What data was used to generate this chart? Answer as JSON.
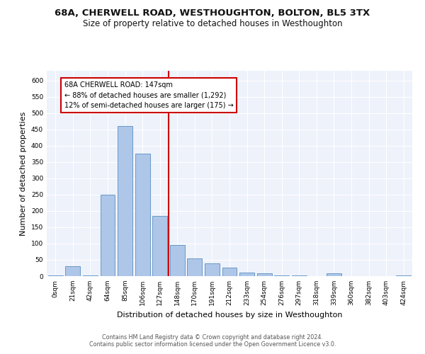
{
  "title": "68A, CHERWELL ROAD, WESTHOUGHTON, BOLTON, BL5 3TX",
  "subtitle": "Size of property relative to detached houses in Westhoughton",
  "xlabel": "Distribution of detached houses by size in Westhoughton",
  "ylabel": "Number of detached properties",
  "footer1": "Contains HM Land Registry data © Crown copyright and database right 2024.",
  "footer2": "Contains public sector information licensed under the Open Government Licence v3.0.",
  "bar_labels": [
    "0sqm",
    "21sqm",
    "42sqm",
    "64sqm",
    "85sqm",
    "106sqm",
    "127sqm",
    "148sqm",
    "170sqm",
    "191sqm",
    "212sqm",
    "233sqm",
    "254sqm",
    "276sqm",
    "297sqm",
    "318sqm",
    "339sqm",
    "360sqm",
    "382sqm",
    "403sqm",
    "424sqm"
  ],
  "bar_values": [
    2,
    30,
    2,
    250,
    460,
    375,
    185,
    95,
    55,
    40,
    25,
    10,
    8,
    2,
    2,
    0,
    8,
    0,
    0,
    0,
    2
  ],
  "bar_color": "#aec6e8",
  "bar_edge_color": "#5a8fc0",
  "vline_index": 7,
  "vline_color": "#cc0000",
  "annotation_text": "68A CHERWELL ROAD: 147sqm\n← 88% of detached houses are smaller (1,292)\n12% of semi-detached houses are larger (175) →",
  "annotation_box_color": "#ffffff",
  "annotation_box_edge": "#cc0000",
  "ylim": [
    0,
    630
  ],
  "yticks": [
    0,
    50,
    100,
    150,
    200,
    250,
    300,
    350,
    400,
    450,
    500,
    550,
    600
  ],
  "background_color": "#eef2fb",
  "grid_color": "#ffffff",
  "title_fontsize": 9.5,
  "subtitle_fontsize": 8.5,
  "ylabel_fontsize": 8,
  "xlabel_fontsize": 8,
  "tick_fontsize": 6.5,
  "annotation_fontsize": 7,
  "footer_fontsize": 5.8
}
